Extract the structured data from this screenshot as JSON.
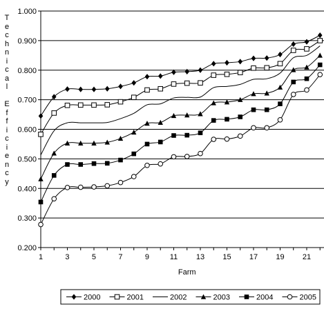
{
  "chart_data": {
    "type": "line",
    "title": "",
    "xlabel": "Farm",
    "ylabel": "Technical Efficiency",
    "ylim": [
      0.2,
      1.0
    ],
    "yticks": [
      "0.200",
      "0.300",
      "0.400",
      "0.500",
      "0.600",
      "0.700",
      "0.800",
      "0.900",
      "1.000"
    ],
    "xticks": [
      "1",
      "3",
      "5",
      "7",
      "9",
      "11",
      "13",
      "15",
      "17",
      "19",
      "21"
    ],
    "x": [
      1,
      2,
      3,
      4,
      5,
      6,
      7,
      8,
      9,
      10,
      11,
      12,
      13,
      14,
      15,
      16,
      17,
      18,
      19,
      20,
      21,
      22
    ],
    "grid": "horizontal",
    "legend_position": "bottom",
    "series": [
      {
        "name": "2000",
        "marker": "filled-diamond",
        "values": [
          0.645,
          0.71,
          0.736,
          0.735,
          0.735,
          0.737,
          0.745,
          0.757,
          0.778,
          0.78,
          0.793,
          0.795,
          0.8,
          0.822,
          0.825,
          0.829,
          0.84,
          0.841,
          0.853,
          0.888,
          0.896,
          0.918
        ]
      },
      {
        "name": "2001",
        "marker": "open-square",
        "values": [
          0.583,
          0.655,
          0.681,
          0.682,
          0.682,
          0.683,
          0.693,
          0.708,
          0.733,
          0.737,
          0.753,
          0.756,
          0.757,
          0.783,
          0.786,
          0.792,
          0.807,
          0.808,
          0.822,
          0.867,
          0.872,
          0.9
        ]
      },
      {
        "name": "2002",
        "marker": "none",
        "values": [
          0.513,
          0.595,
          0.622,
          0.622,
          0.622,
          0.623,
          0.636,
          0.654,
          0.683,
          0.686,
          0.706,
          0.708,
          0.709,
          0.741,
          0.745,
          0.752,
          0.769,
          0.771,
          0.79,
          0.842,
          0.85,
          0.882
        ]
      },
      {
        "name": "2003",
        "marker": "filled-triangle",
        "values": [
          0.432,
          0.519,
          0.553,
          0.553,
          0.553,
          0.556,
          0.569,
          0.59,
          0.62,
          0.623,
          0.646,
          0.648,
          0.652,
          0.689,
          0.692,
          0.7,
          0.72,
          0.722,
          0.742,
          0.801,
          0.81,
          0.85
        ]
      },
      {
        "name": "2004",
        "marker": "filled-square",
        "values": [
          0.354,
          0.444,
          0.481,
          0.481,
          0.484,
          0.485,
          0.496,
          0.517,
          0.55,
          0.557,
          0.579,
          0.58,
          0.588,
          0.63,
          0.634,
          0.642,
          0.666,
          0.666,
          0.686,
          0.76,
          0.771,
          0.818
        ]
      },
      {
        "name": "2005",
        "marker": "open-circle",
        "values": [
          0.278,
          0.365,
          0.403,
          0.404,
          0.405,
          0.409,
          0.42,
          0.44,
          0.478,
          0.483,
          0.507,
          0.508,
          0.518,
          0.566,
          0.567,
          0.577,
          0.605,
          0.605,
          0.632,
          0.718,
          0.733,
          0.785
        ]
      }
    ]
  }
}
